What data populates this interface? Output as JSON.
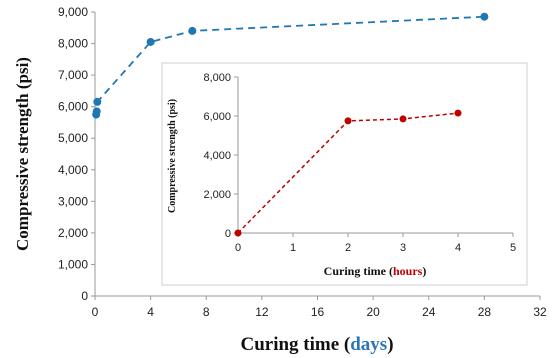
{
  "chart_data": [
    {
      "type": "line",
      "xlabel_prefix": "Curing time (",
      "xlabel_unit": "days",
      "xlabel_suffix": ")",
      "ylabel": "Compressive strength (psi)",
      "xlim": [
        0,
        32
      ],
      "ylim": [
        0,
        9000
      ],
      "xticks": [
        0,
        4,
        8,
        12,
        16,
        20,
        24,
        28,
        32
      ],
      "yticks": [
        0,
        1000,
        2000,
        3000,
        4000,
        5000,
        6000,
        7000,
        8000,
        9000
      ],
      "ytick_labels": [
        "0",
        "1,000",
        "2,000",
        "3,000",
        "4,000",
        "5,000",
        "6,000",
        "7,000",
        "8,000",
        "9,000"
      ],
      "grid": false,
      "series": [
        {
          "color": "#1f77b4",
          "line_style": "dashed",
          "x": [
            0.083,
            0.125,
            0.167,
            4,
            7,
            28
          ],
          "y": [
            5750,
            5850,
            6150,
            8050,
            8400,
            8850
          ]
        }
      ]
    },
    {
      "type": "line",
      "inset": true,
      "xlabel_prefix": "Curing time (",
      "xlabel_unit": "hours",
      "xlabel_suffix": ")",
      "ylabel": "Compressive strength (psi)",
      "xlim": [
        0,
        5
      ],
      "ylim": [
        0,
        8000
      ],
      "xticks": [
        0,
        1,
        2,
        3,
        4,
        5
      ],
      "yticks": [
        0,
        2000,
        4000,
        6000,
        8000
      ],
      "ytick_labels": [
        "0",
        "2,000",
        "4,000",
        "6,000",
        "8,000"
      ],
      "grid": false,
      "series": [
        {
          "color": "#c00000",
          "line_style": "dashed",
          "x": [
            0,
            2,
            3,
            4
          ],
          "y": [
            0,
            5750,
            5850,
            6150
          ]
        }
      ]
    }
  ],
  "colors": {
    "main_series": "#1f77b4",
    "inset_series": "#c00000",
    "main_unit_highlight": "#2e75b6",
    "inset_unit_highlight": "#c00000"
  }
}
